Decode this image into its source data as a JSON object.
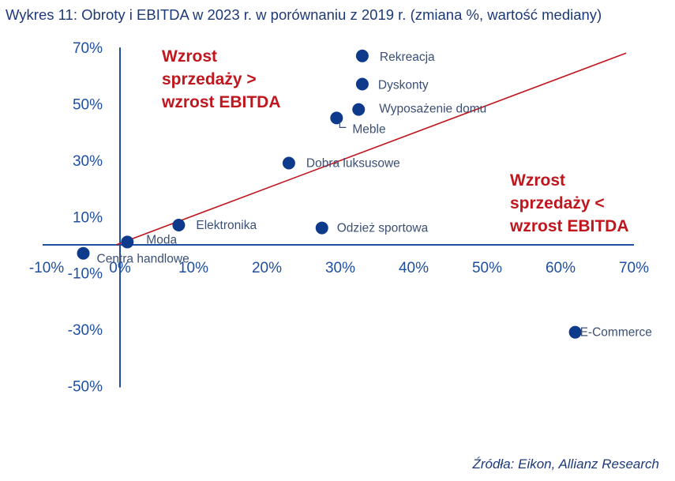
{
  "chart_data": {
    "type": "scatter",
    "title": "Wykres 11: Obroty i EBITDA w 2023 r. w porównaniu z 2019 r. (zmiana %, wartość mediany)",
    "source": "Źródła: Eikon, Allianz Research",
    "xlabel": "",
    "ylabel": "",
    "xlim": [
      -10,
      70
    ],
    "ylim": [
      -50,
      70
    ],
    "x_ticks": [
      "-10%",
      "0%",
      "10%",
      "20%",
      "30%",
      "40%",
      "50%",
      "60%",
      "70%"
    ],
    "y_ticks": [
      "70%",
      "50%",
      "30%",
      "10%",
      "-10%",
      "-30%",
      "-50%"
    ],
    "x_tick_values": [
      -10,
      0,
      10,
      20,
      30,
      40,
      50,
      60,
      70
    ],
    "y_tick_values": [
      70,
      50,
      30,
      10,
      -10,
      -30,
      -50
    ],
    "points": [
      {
        "label": "Rekreacja",
        "x": 33,
        "y": 67
      },
      {
        "label": "Dyskonty",
        "x": 33,
        "y": 57
      },
      {
        "label": "Wyposażenie domu",
        "x": 32.5,
        "y": 48
      },
      {
        "label": "Meble",
        "x": 29.5,
        "y": 45
      },
      {
        "label": "Dobra luksusowe",
        "x": 23,
        "y": 29
      },
      {
        "label": "Elektronika",
        "x": 8,
        "y": 7
      },
      {
        "label": "Odzież sportowa",
        "x": 27.5,
        "y": 6
      },
      {
        "label": "Moda",
        "x": 1,
        "y": 1
      },
      {
        "label": "Centra handlowe",
        "x": -5,
        "y": -3
      },
      {
        "label": "E-Commerce",
        "x": 62,
        "y": -31
      }
    ],
    "reference_line": {
      "x": [
        0,
        70
      ],
      "y": [
        0,
        68
      ]
    },
    "annotations": [
      {
        "lines": [
          "Wzrost",
          "sprzedaży >",
          "wzrost EBITDA"
        ]
      },
      {
        "lines": [
          "Wzrost",
          "sprzedaży <",
          "wzrost EBITDA"
        ]
      }
    ],
    "colors": {
      "points": "#0d3a8a",
      "axes": "#1f4fa0",
      "line": "#c0161e",
      "annotation": "#c0161e",
      "title": "#1d3a78"
    }
  }
}
